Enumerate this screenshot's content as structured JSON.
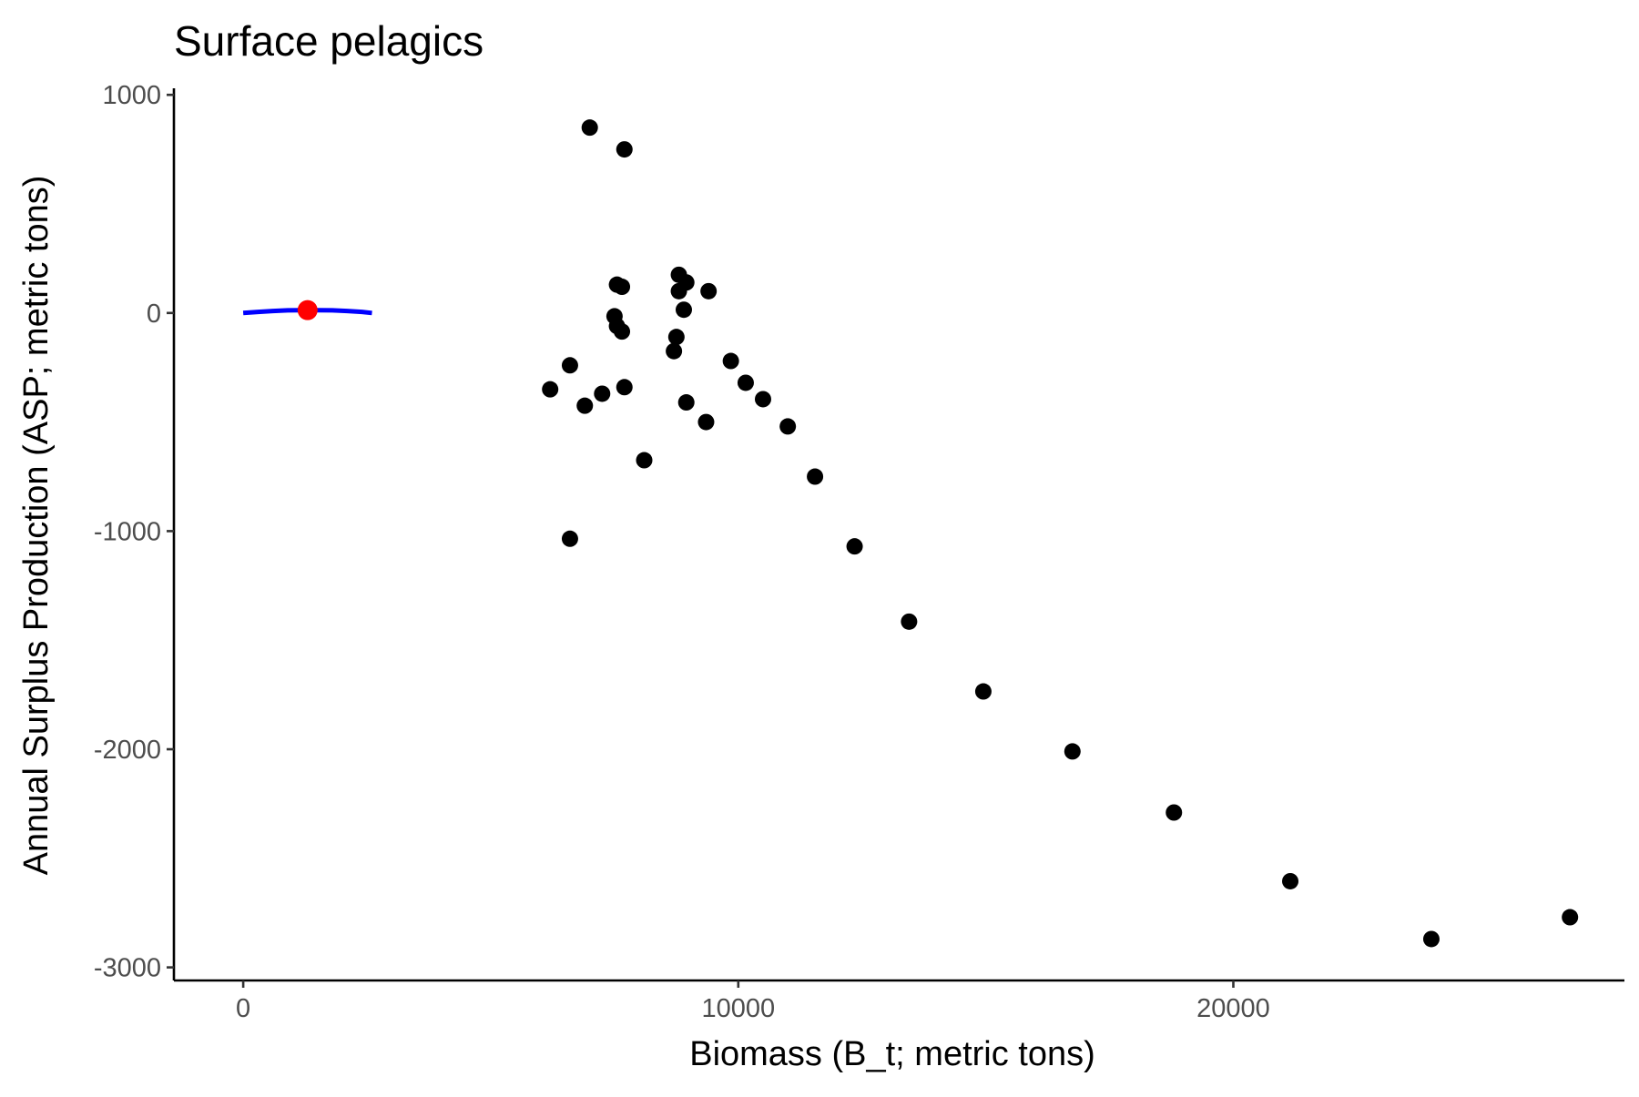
{
  "chart_data": {
    "type": "scatter",
    "title": "Surface pelagics",
    "xlabel": "Biomass (B_t; metric tons)",
    "ylabel": "Annual Surplus Production (ASP; metric tons)",
    "xlim": [
      -1400,
      27900
    ],
    "ylim": [
      -3060,
      1030
    ],
    "x_ticks": [
      0,
      10000,
      20000
    ],
    "x_tick_labels": [
      "0",
      "10000",
      "20000"
    ],
    "y_ticks": [
      1000,
      0,
      -1000,
      -2000,
      -3000
    ],
    "y_tick_labels": [
      "1000",
      "0",
      "-1000",
      "-2000",
      "-3000"
    ],
    "grid": false,
    "legend": "none",
    "colors": {
      "points": "#000000",
      "curve": "#0000ff",
      "highlight": "#ff0000",
      "axis": "#000000",
      "tick_text": "#4d4d4d"
    },
    "series": [
      {
        "kind": "points",
        "points": [
          {
            "x": 7000,
            "y": 850
          },
          {
            "x": 7700,
            "y": 750
          },
          {
            "x": 8800,
            "y": 175
          },
          {
            "x": 8950,
            "y": 140
          },
          {
            "x": 7550,
            "y": 130
          },
          {
            "x": 7650,
            "y": 120
          },
          {
            "x": 9400,
            "y": 100
          },
          {
            "x": 8800,
            "y": 100
          },
          {
            "x": 8900,
            "y": 15
          },
          {
            "x": 7500,
            "y": -15
          },
          {
            "x": 7550,
            "y": -60
          },
          {
            "x": 7650,
            "y": -85
          },
          {
            "x": 8750,
            "y": -110
          },
          {
            "x": 8700,
            "y": -175
          },
          {
            "x": 9850,
            "y": -220
          },
          {
            "x": 6600,
            "y": -240
          },
          {
            "x": 10150,
            "y": -320
          },
          {
            "x": 7700,
            "y": -340
          },
          {
            "x": 6200,
            "y": -350
          },
          {
            "x": 7250,
            "y": -370
          },
          {
            "x": 10500,
            "y": -395
          },
          {
            "x": 8950,
            "y": -410
          },
          {
            "x": 6900,
            "y": -425
          },
          {
            "x": 9350,
            "y": -500
          },
          {
            "x": 11000,
            "y": -520
          },
          {
            "x": 8100,
            "y": -675
          },
          {
            "x": 11550,
            "y": -750
          },
          {
            "x": 6600,
            "y": -1035
          },
          {
            "x": 12350,
            "y": -1070
          },
          {
            "x": 13450,
            "y": -1415
          },
          {
            "x": 14950,
            "y": -1735
          },
          {
            "x": 16750,
            "y": -2010
          },
          {
            "x": 18800,
            "y": -2290
          },
          {
            "x": 21150,
            "y": -2605
          },
          {
            "x": 24000,
            "y": -2870
          },
          {
            "x": 26800,
            "y": -2770
          }
        ]
      },
      {
        "kind": "curve",
        "points": [
          {
            "x": 0,
            "y": 0
          },
          {
            "x": 300,
            "y": 5
          },
          {
            "x": 600,
            "y": 9
          },
          {
            "x": 900,
            "y": 12
          },
          {
            "x": 1200,
            "y": 13
          },
          {
            "x": 1500,
            "y": 13
          },
          {
            "x": 1800,
            "y": 12
          },
          {
            "x": 2100,
            "y": 9
          },
          {
            "x": 2400,
            "y": 5
          },
          {
            "x": 2600,
            "y": 0
          }
        ]
      },
      {
        "kind": "highlight",
        "points": [
          {
            "x": 1300,
            "y": 13
          }
        ]
      }
    ]
  }
}
